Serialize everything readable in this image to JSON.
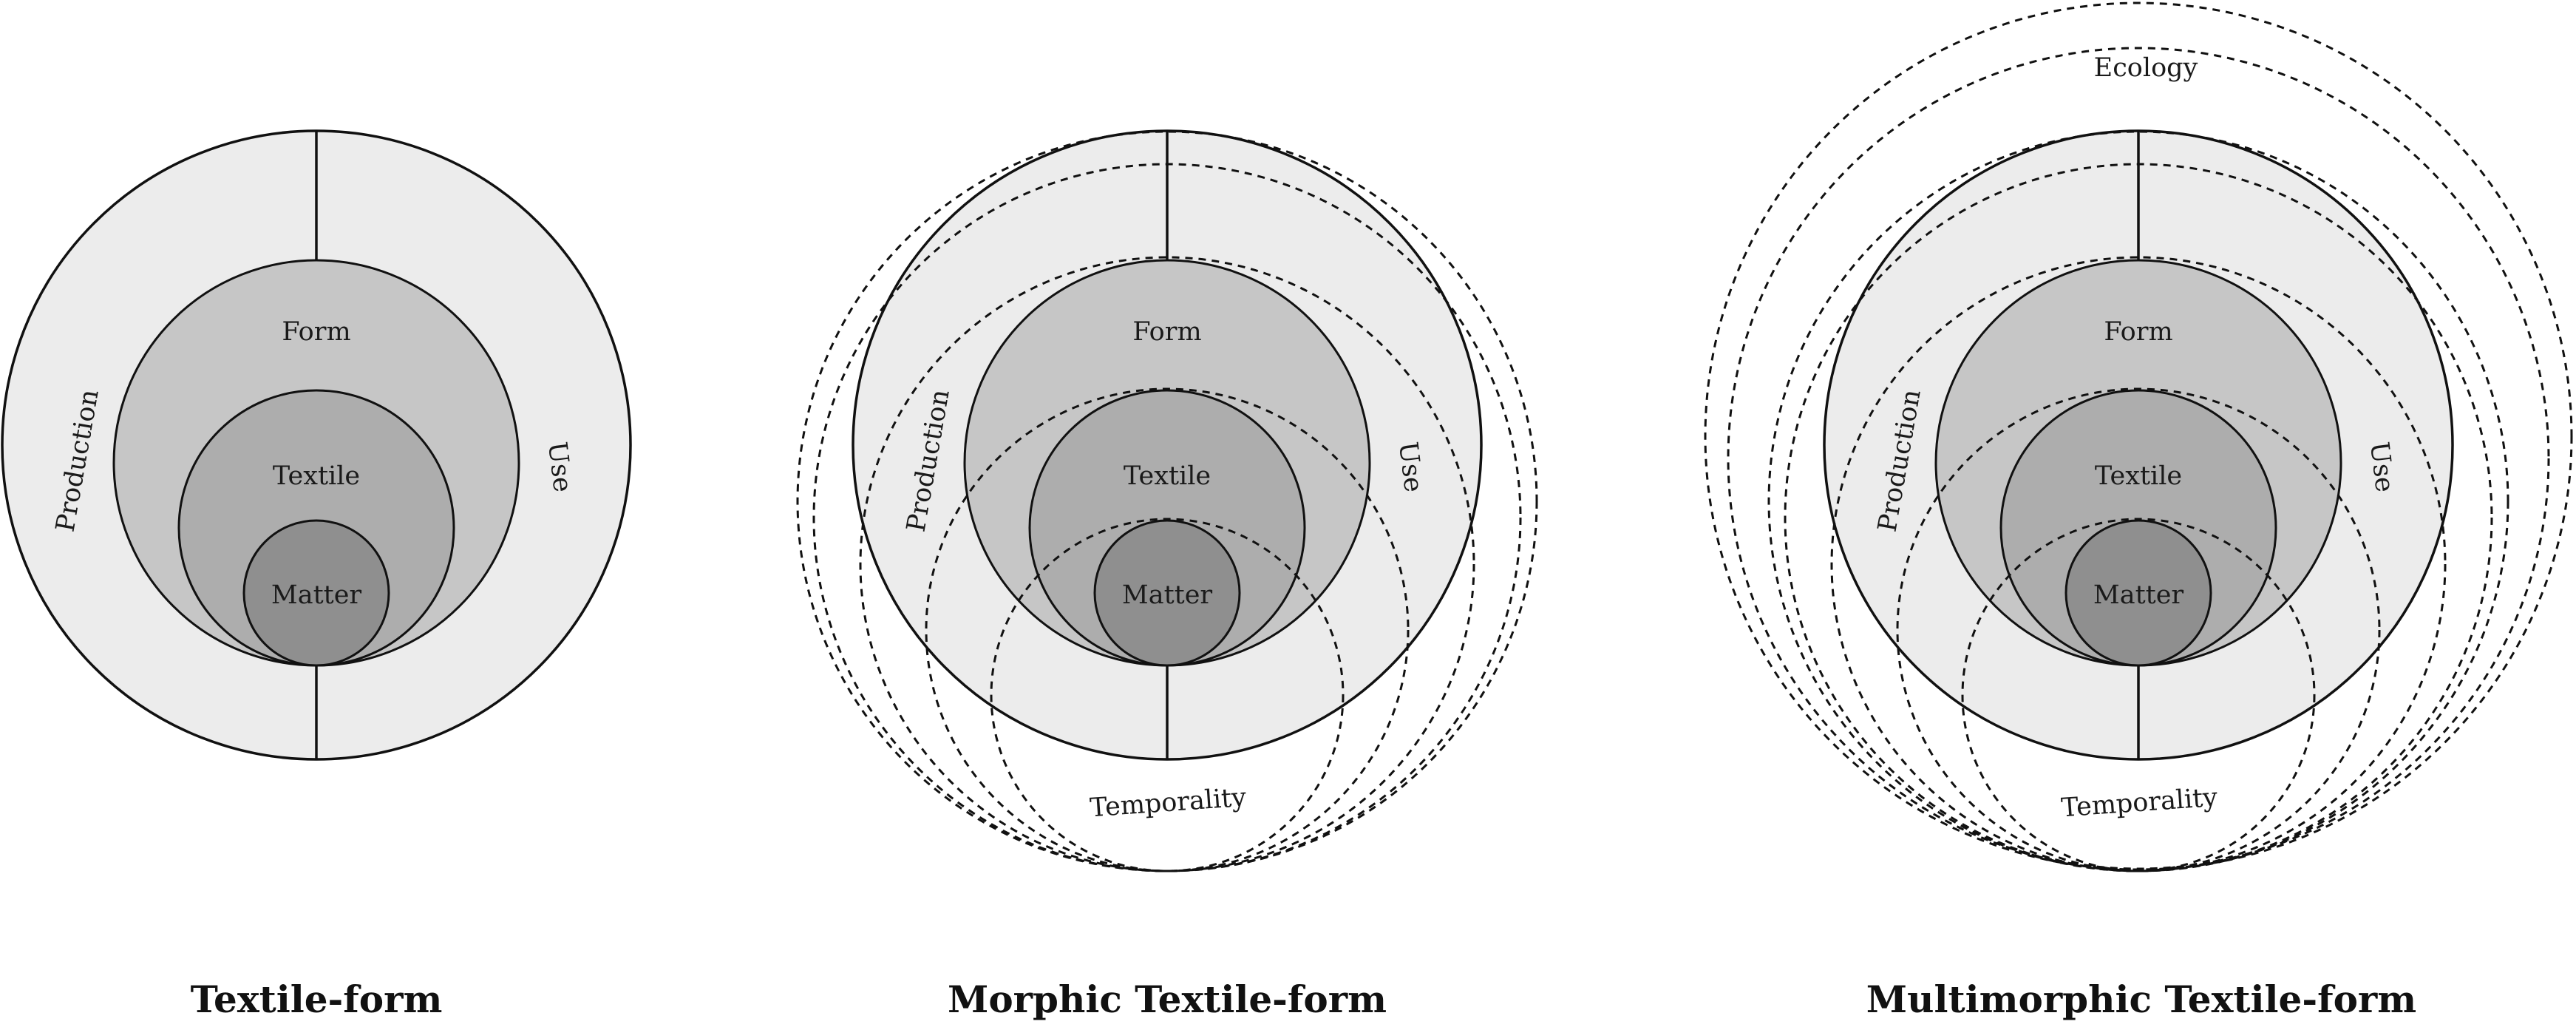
{
  "diagrams": [
    {
      "title": "Textile-form",
      "labels": {
        "form": "Form",
        "textile": "Textile",
        "matter": "Matter",
        "production": "Production",
        "use": "Use"
      }
    },
    {
      "title": "Morphic Textile-form",
      "labels": {
        "form": "Form",
        "textile": "Textile",
        "matter": "Matter",
        "production": "Production",
        "use": "Use",
        "temporality": "Temporality"
      }
    },
    {
      "title": "Multimorphic Textile-form",
      "labels": {
        "form": "Form",
        "textile": "Textile",
        "matter": "Matter",
        "production": "Production",
        "use": "Use",
        "temporality": "Temporality",
        "ecology": "Ecology"
      }
    }
  ],
  "colors": {
    "outer_fill": "#ececec",
    "form_fill": "#c6c6c6",
    "textile_fill": "#adadad",
    "matter_fill": "#8f8f8f",
    "stroke": "#111111"
  }
}
